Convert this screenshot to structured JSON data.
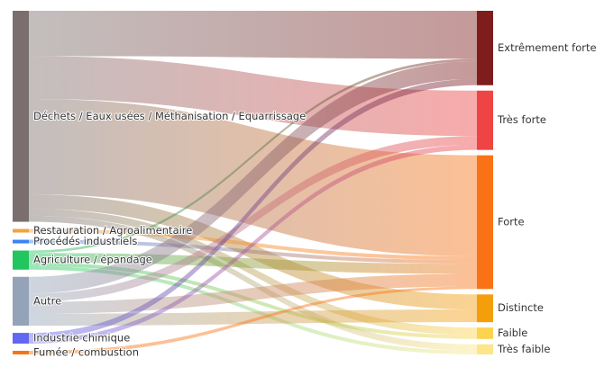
{
  "chart_data": {
    "type": "sankey",
    "title": "",
    "sources": [
      {
        "id": "dechets",
        "label": "Déchets / Eaux usées / Méthanisation / Equarrissage",
        "color": "#7a6f6e"
      },
      {
        "id": "restauration",
        "label": "Restauration / Agroalimentaire",
        "color": "#f2a33a"
      },
      {
        "id": "procedes",
        "label": "Procédés industriels",
        "color": "#3b82f6"
      },
      {
        "id": "agriculture",
        "label": "Agriculture / épandage",
        "color": "#22c55e"
      },
      {
        "id": "autre",
        "label": "Autre",
        "color": "#94a3b8"
      },
      {
        "id": "chimique",
        "label": "Industrie chimique",
        "color": "#6366f1"
      },
      {
        "id": "fumee",
        "label": "Fumée / combustion",
        "color": "#f97316"
      }
    ],
    "targets": [
      {
        "id": "extreme",
        "label": "Extrêmement forte",
        "color": "#7f1d1d"
      },
      {
        "id": "tresforte",
        "label": "Très forte",
        "color": "#ef4444"
      },
      {
        "id": "forte",
        "label": "Forte",
        "color": "#f97316"
      },
      {
        "id": "distincte",
        "label": "Distincte",
        "color": "#f59e0b"
      },
      {
        "id": "faible",
        "label": "Faible",
        "color": "#fcd34d"
      },
      {
        "id": "tresfaible",
        "label": "Très faible",
        "color": "#fde68a"
      }
    ],
    "links": [
      {
        "source": "dechets",
        "target": "extreme",
        "value": 38
      },
      {
        "source": "dechets",
        "target": "tresforte",
        "value": 36
      },
      {
        "source": "dechets",
        "target": "forte",
        "value": 80
      },
      {
        "source": "dechets",
        "target": "distincte",
        "value": 12
      },
      {
        "source": "dechets",
        "target": "faible",
        "value": 6
      },
      {
        "source": "dechets",
        "target": "tresfaible",
        "value": 5
      },
      {
        "source": "restauration",
        "target": "forte",
        "value": 3
      },
      {
        "source": "procedes",
        "target": "forte",
        "value": 3
      },
      {
        "source": "agriculture",
        "target": "extreme",
        "value": 2
      },
      {
        "source": "agriculture",
        "target": "forte",
        "value": 8
      },
      {
        "source": "agriculture",
        "target": "faible",
        "value": 3
      },
      {
        "source": "agriculture",
        "target": "tresfaible",
        "value": 3
      },
      {
        "source": "autre",
        "target": "extreme",
        "value": 14
      },
      {
        "source": "autre",
        "target": "tresforte",
        "value": 7
      },
      {
        "source": "autre",
        "target": "forte",
        "value": 10
      },
      {
        "source": "autre",
        "target": "distincte",
        "value": 10
      },
      {
        "source": "chimique",
        "target": "extreme",
        "value": 5
      },
      {
        "source": "chimique",
        "target": "tresforte",
        "value": 4
      },
      {
        "source": "fumee",
        "target": "forte",
        "value": 2
      }
    ]
  }
}
